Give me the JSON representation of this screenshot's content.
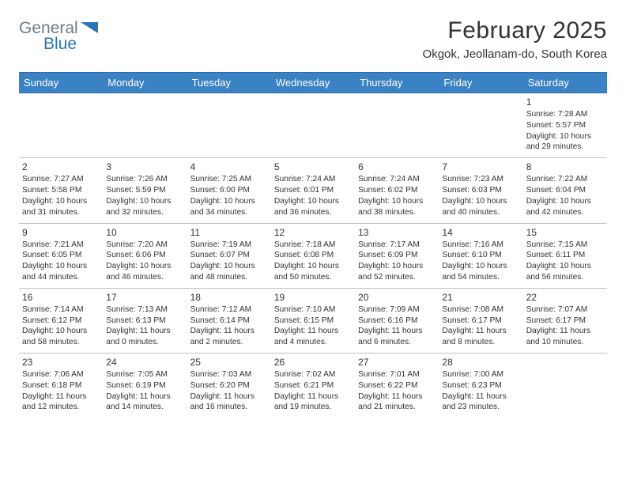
{
  "logo": {
    "text_top": "General",
    "text_bottom": "Blue",
    "color_gray": "#6f7b82",
    "color_blue": "#2b74b8"
  },
  "title": "February 2025",
  "subtitle": "Okgok, Jeollanam-do, South Korea",
  "header_bg": "#3a82c4",
  "header_fg": "#ffffff",
  "rule_color": "#b9c2c9",
  "columns": [
    "Sunday",
    "Monday",
    "Tuesday",
    "Wednesday",
    "Thursday",
    "Friday",
    "Saturday"
  ],
  "weeks": [
    [
      null,
      null,
      null,
      null,
      null,
      null,
      {
        "n": "1",
        "sunrise": "Sunrise: 7:28 AM",
        "sunset": "Sunset: 5:57 PM",
        "daylight": "Daylight: 10 hours and 29 minutes."
      }
    ],
    [
      {
        "n": "2",
        "sunrise": "Sunrise: 7:27 AM",
        "sunset": "Sunset: 5:58 PM",
        "daylight": "Daylight: 10 hours and 31 minutes."
      },
      {
        "n": "3",
        "sunrise": "Sunrise: 7:26 AM",
        "sunset": "Sunset: 5:59 PM",
        "daylight": "Daylight: 10 hours and 32 minutes."
      },
      {
        "n": "4",
        "sunrise": "Sunrise: 7:25 AM",
        "sunset": "Sunset: 6:00 PM",
        "daylight": "Daylight: 10 hours and 34 minutes."
      },
      {
        "n": "5",
        "sunrise": "Sunrise: 7:24 AM",
        "sunset": "Sunset: 6:01 PM",
        "daylight": "Daylight: 10 hours and 36 minutes."
      },
      {
        "n": "6",
        "sunrise": "Sunrise: 7:24 AM",
        "sunset": "Sunset: 6:02 PM",
        "daylight": "Daylight: 10 hours and 38 minutes."
      },
      {
        "n": "7",
        "sunrise": "Sunrise: 7:23 AM",
        "sunset": "Sunset: 6:03 PM",
        "daylight": "Daylight: 10 hours and 40 minutes."
      },
      {
        "n": "8",
        "sunrise": "Sunrise: 7:22 AM",
        "sunset": "Sunset: 6:04 PM",
        "daylight": "Daylight: 10 hours and 42 minutes."
      }
    ],
    [
      {
        "n": "9",
        "sunrise": "Sunrise: 7:21 AM",
        "sunset": "Sunset: 6:05 PM",
        "daylight": "Daylight: 10 hours and 44 minutes."
      },
      {
        "n": "10",
        "sunrise": "Sunrise: 7:20 AM",
        "sunset": "Sunset: 6:06 PM",
        "daylight": "Daylight: 10 hours and 46 minutes."
      },
      {
        "n": "11",
        "sunrise": "Sunrise: 7:19 AM",
        "sunset": "Sunset: 6:07 PM",
        "daylight": "Daylight: 10 hours and 48 minutes."
      },
      {
        "n": "12",
        "sunrise": "Sunrise: 7:18 AM",
        "sunset": "Sunset: 6:08 PM",
        "daylight": "Daylight: 10 hours and 50 minutes."
      },
      {
        "n": "13",
        "sunrise": "Sunrise: 7:17 AM",
        "sunset": "Sunset: 6:09 PM",
        "daylight": "Daylight: 10 hours and 52 minutes."
      },
      {
        "n": "14",
        "sunrise": "Sunrise: 7:16 AM",
        "sunset": "Sunset: 6:10 PM",
        "daylight": "Daylight: 10 hours and 54 minutes."
      },
      {
        "n": "15",
        "sunrise": "Sunrise: 7:15 AM",
        "sunset": "Sunset: 6:11 PM",
        "daylight": "Daylight: 10 hours and 56 minutes."
      }
    ],
    [
      {
        "n": "16",
        "sunrise": "Sunrise: 7:14 AM",
        "sunset": "Sunset: 6:12 PM",
        "daylight": "Daylight: 10 hours and 58 minutes."
      },
      {
        "n": "17",
        "sunrise": "Sunrise: 7:13 AM",
        "sunset": "Sunset: 6:13 PM",
        "daylight": "Daylight: 11 hours and 0 minutes."
      },
      {
        "n": "18",
        "sunrise": "Sunrise: 7:12 AM",
        "sunset": "Sunset: 6:14 PM",
        "daylight": "Daylight: 11 hours and 2 minutes."
      },
      {
        "n": "19",
        "sunrise": "Sunrise: 7:10 AM",
        "sunset": "Sunset: 6:15 PM",
        "daylight": "Daylight: 11 hours and 4 minutes."
      },
      {
        "n": "20",
        "sunrise": "Sunrise: 7:09 AM",
        "sunset": "Sunset: 6:16 PM",
        "daylight": "Daylight: 11 hours and 6 minutes."
      },
      {
        "n": "21",
        "sunrise": "Sunrise: 7:08 AM",
        "sunset": "Sunset: 6:17 PM",
        "daylight": "Daylight: 11 hours and 8 minutes."
      },
      {
        "n": "22",
        "sunrise": "Sunrise: 7:07 AM",
        "sunset": "Sunset: 6:17 PM",
        "daylight": "Daylight: 11 hours and 10 minutes."
      }
    ],
    [
      {
        "n": "23",
        "sunrise": "Sunrise: 7:06 AM",
        "sunset": "Sunset: 6:18 PM",
        "daylight": "Daylight: 11 hours and 12 minutes."
      },
      {
        "n": "24",
        "sunrise": "Sunrise: 7:05 AM",
        "sunset": "Sunset: 6:19 PM",
        "daylight": "Daylight: 11 hours and 14 minutes."
      },
      {
        "n": "25",
        "sunrise": "Sunrise: 7:03 AM",
        "sunset": "Sunset: 6:20 PM",
        "daylight": "Daylight: 11 hours and 16 minutes."
      },
      {
        "n": "26",
        "sunrise": "Sunrise: 7:02 AM",
        "sunset": "Sunset: 6:21 PM",
        "daylight": "Daylight: 11 hours and 19 minutes."
      },
      {
        "n": "27",
        "sunrise": "Sunrise: 7:01 AM",
        "sunset": "Sunset: 6:22 PM",
        "daylight": "Daylight: 11 hours and 21 minutes."
      },
      {
        "n": "28",
        "sunrise": "Sunrise: 7:00 AM",
        "sunset": "Sunset: 6:23 PM",
        "daylight": "Daylight: 11 hours and 23 minutes."
      },
      null
    ]
  ]
}
